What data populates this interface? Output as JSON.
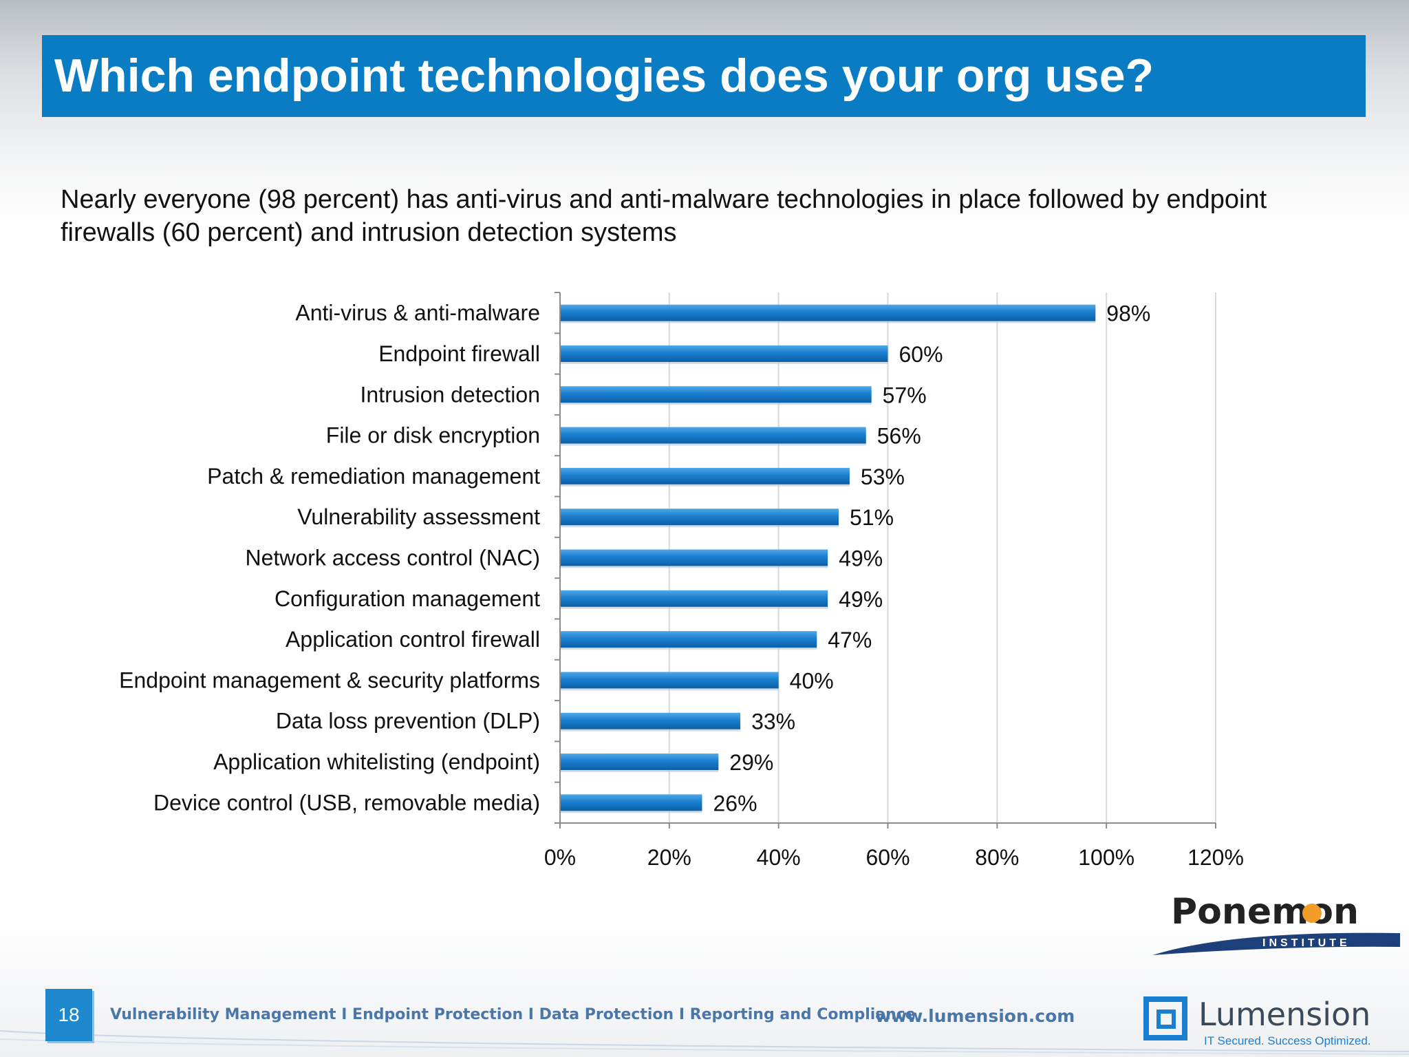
{
  "slide": {
    "title": "Which endpoint technologies does your org use?",
    "subtitle": "Nearly everyone (98 percent) has anti-virus and anti-malware technologies in place followed by endpoint firewalls (60 percent) and intrusion detection systems",
    "page_number": "18"
  },
  "footer": {
    "links": "Vulnerability Management I Endpoint Protection I Data Protection I Reporting and Compliance",
    "url": "www.lumension.com"
  },
  "logos": {
    "ponemon_name": "Ponemon",
    "ponemon_sub": "INSTITUTE",
    "lumension_name": "Lumension",
    "lumension_tagline": "IT Secured. Success Optimized."
  },
  "colors": {
    "title_bar": "#0a7cc4",
    "bar": "#1a7fd0",
    "footer_text": "#4a77a8"
  },
  "chart_data": {
    "type": "bar",
    "orientation": "horizontal",
    "categories": [
      "Anti-virus & anti-malware",
      "Endpoint firewall",
      "Intrusion detection",
      "File or disk encryption",
      "Patch & remediation management",
      "Vulnerability assessment",
      "Network access control (NAC)",
      "Configuration management",
      "Application control firewall",
      "Endpoint management & security platforms",
      "Data loss prevention (DLP)",
      "Application whitelisting (endpoint)",
      "Device control (USB, removable media)"
    ],
    "values": [
      98,
      60,
      57,
      56,
      53,
      51,
      49,
      49,
      47,
      40,
      33,
      29,
      26
    ],
    "value_labels": [
      "98%",
      "60%",
      "57%",
      "56%",
      "53%",
      "51%",
      "49%",
      "49%",
      "47%",
      "40%",
      "33%",
      "29%",
      "26%"
    ],
    "xlim": [
      0,
      120
    ],
    "x_ticks": [
      0,
      20,
      40,
      60,
      80,
      100,
      120
    ],
    "x_tick_labels": [
      "0%",
      "20%",
      "40%",
      "60%",
      "80%",
      "100%",
      "120%"
    ],
    "grid": true,
    "legend": "none"
  }
}
